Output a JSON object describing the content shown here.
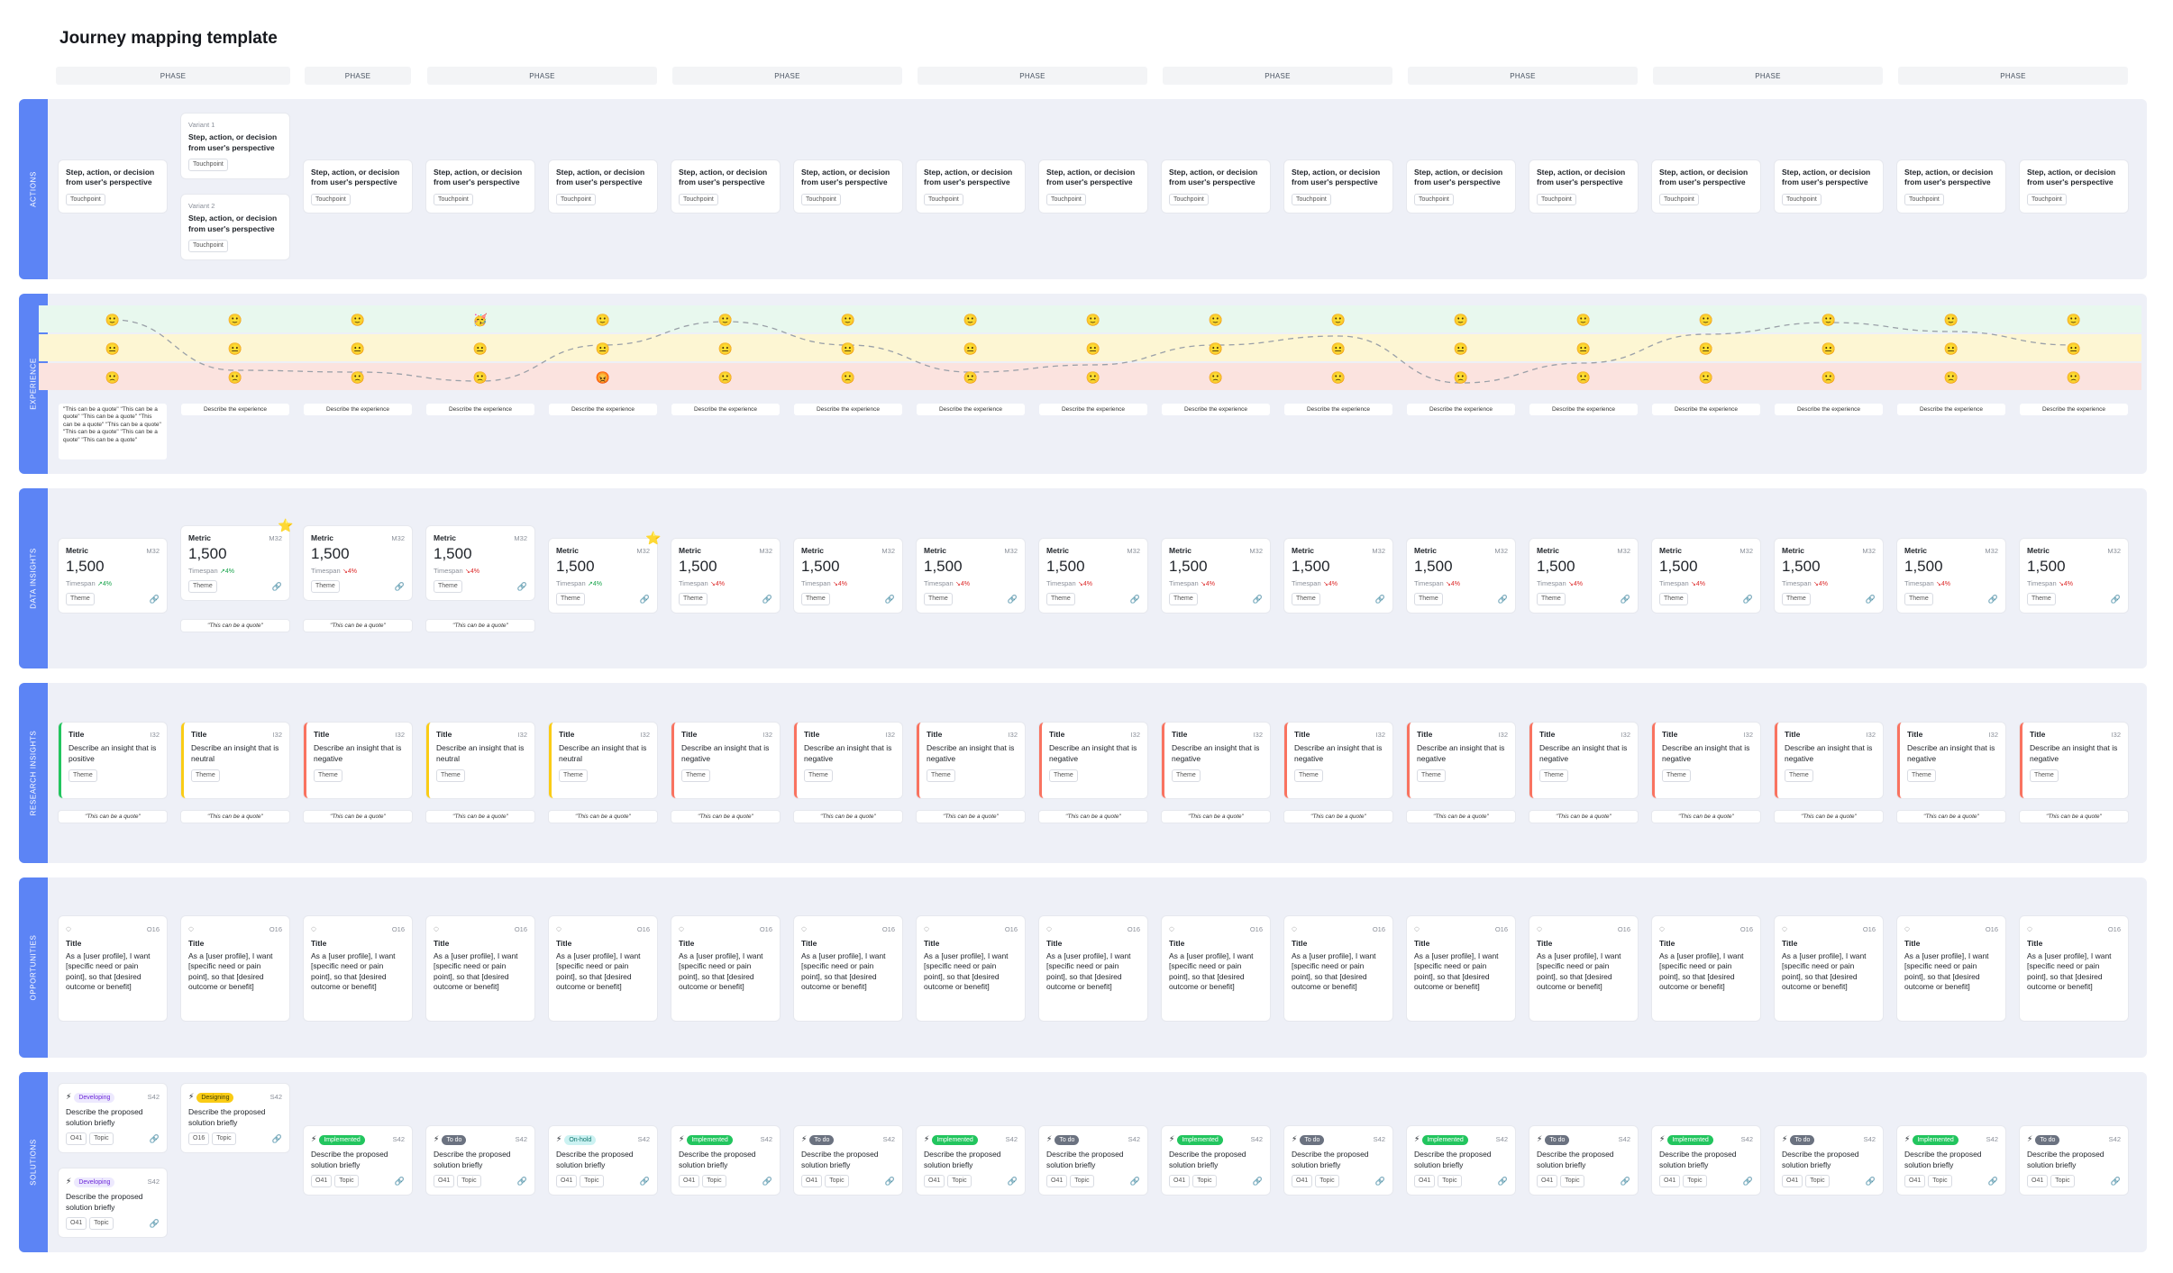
{
  "title": "Journey mapping template",
  "phases": [
    "PHASE",
    "PHASE",
    "PHASE",
    "PHASE",
    "PHASE",
    "PHASE",
    "PHASE",
    "PHASE",
    "PHASE"
  ],
  "sections": {
    "actions": "ACTIONS",
    "experience": "EXPERIENCE",
    "data_insights": "DATA INSIGHTS",
    "research_insights": "RESEARCH INSIGHTS",
    "opportunities": "OPPORTUNITIES",
    "solutions": "SOLUTIONS"
  },
  "actions": {
    "text": "Step, action, or decision from user's perspective",
    "touchpoint": "Touchpoint",
    "variant1": "Variant 1",
    "variant2": "Variant 2"
  },
  "experience": {
    "emojis": {
      "happy": "🙂",
      "neutral": "😐",
      "sad": "🙁",
      "angry": "😡",
      "party": "🥳"
    },
    "long_quote": "\"This can be a quote\" \"This can be a quote\" \"This can be a quote\" \"This can be a quote\" \"This can be a quote\" \"This can be a quote\" \"This can be a quote\" \"This can be a quote\"",
    "describe": "Describe the experience"
  },
  "data_insights": {
    "metric": "Metric",
    "id": "M32",
    "value": "1,500",
    "timespan": "Timespan",
    "up": "↗4%",
    "down": "↘4%",
    "theme": "Theme",
    "quote": "\"This can be a quote\""
  },
  "research_insights": {
    "title": "Title",
    "id": "I32",
    "positive": "Describe an insight that is positive",
    "neutral": "Describe an insight that is neutral",
    "negative": "Describe an insight that is negative",
    "theme": "Theme",
    "quote": "\"This can be a quote\"",
    "colors": {
      "positive": "#22c55e",
      "neutral": "#facc15",
      "negative": "#f97360"
    }
  },
  "opportunities": {
    "id": "O16",
    "title": "Title",
    "text": "As a [user profile], I want [specific need or pain point], so that [desired outcome or benefit]"
  },
  "solutions": {
    "id": "S42",
    "text": "Describe the proposed solution briefly",
    "o_tag": "O41",
    "o_tag_alt": "O16",
    "topic": "Topic",
    "statuses": {
      "developing": "Developing",
      "designing": "Designing",
      "implemented": "Implemented",
      "todo": "To do",
      "onhold": "On-hold"
    }
  }
}
